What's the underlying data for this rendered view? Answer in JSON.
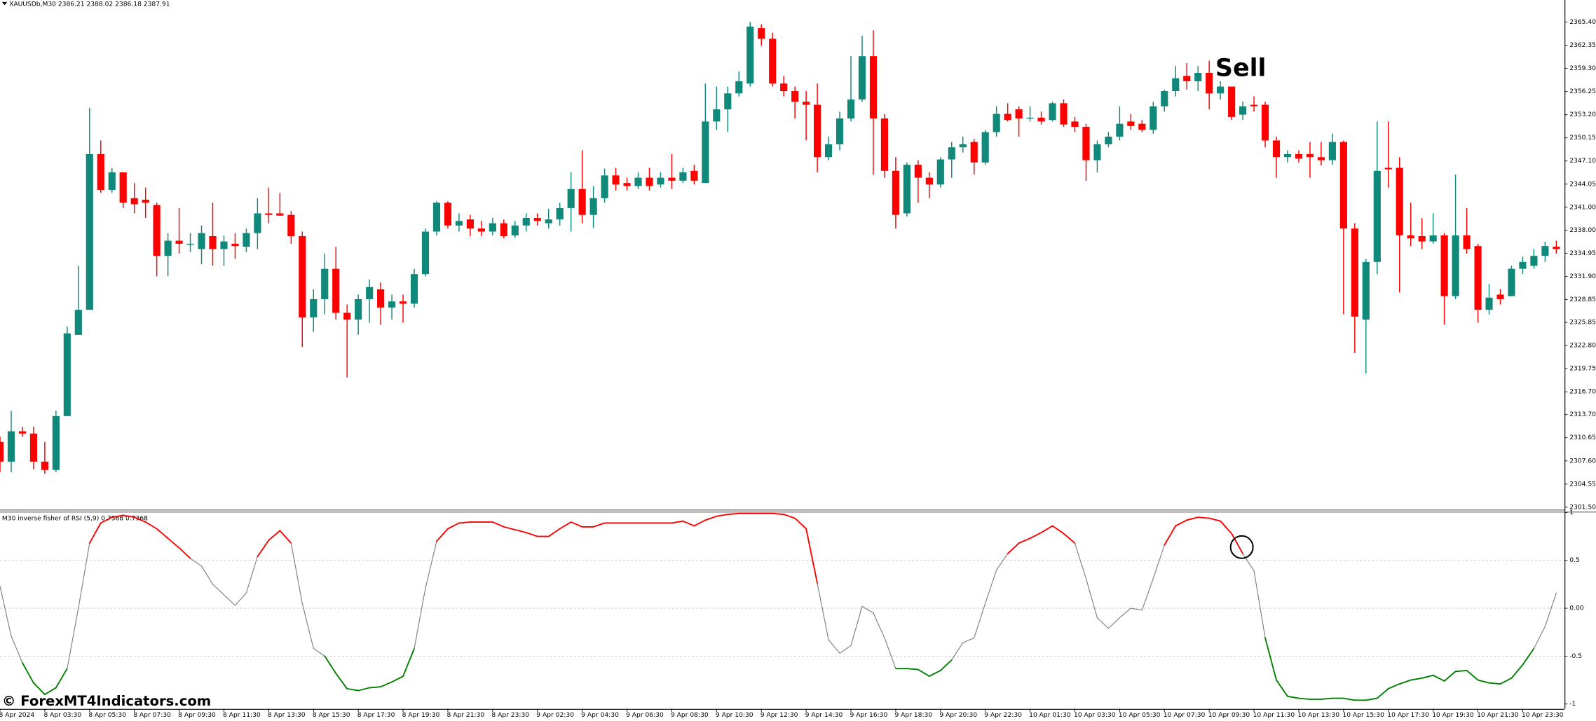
{
  "chart_data": [
    {
      "type": "candlestick",
      "title": "XAUUSDb,M30  2386.21 2388.02 2386.18 2387.91",
      "annotation": "Sell",
      "up_color": "#11897a",
      "down_color": "#ff0000",
      "categories": [
        "8 Apr 2024",
        null,
        null,
        null,
        "8 Apr 03:30",
        null,
        null,
        null,
        "8 Apr 05:30",
        null,
        null,
        null,
        "8 Apr 07:30",
        null,
        null,
        null,
        "8 Apr 09:30",
        null,
        null,
        null,
        "8 Apr 11:30",
        null,
        null,
        null,
        "8 Apr 13:30",
        null,
        null,
        null,
        "8 Apr 15:30",
        null,
        null,
        null,
        "8 Apr 17:30",
        null,
        null,
        null,
        "8 Apr 19:30",
        null,
        null,
        null,
        "8 Apr 21:30",
        null,
        null,
        null,
        "8 Apr 23:30",
        null,
        null,
        null,
        "9 Apr 02:30",
        null,
        null,
        null,
        "9 Apr 04:30",
        null,
        null,
        null,
        "9 Apr 06:30",
        null,
        null,
        null,
        "9 Apr 08:30",
        null,
        null,
        null,
        "9 Apr 10:30",
        null,
        null,
        null,
        "9 Apr 12:30",
        null,
        null,
        null,
        "9 Apr 14:30",
        null,
        null,
        null,
        "9 Apr 16:30",
        null,
        null,
        null,
        "9 Apr 18:30",
        null,
        null,
        null,
        "9 Apr 20:30",
        null,
        null,
        null,
        "9 Apr 22:30",
        null,
        null,
        null,
        "10 Apr 01:30",
        null,
        null,
        null,
        "10 Apr 03:30",
        null,
        null,
        null,
        "10 Apr 05:30",
        null,
        null,
        null,
        "10 Apr 07:30",
        null,
        null,
        null,
        "10 Apr 09:30",
        null,
        null,
        null,
        "10 Apr 11:30",
        null,
        null,
        null,
        "10 Apr 13:30",
        null,
        null,
        null,
        "10 Apr 15:30",
        null,
        null,
        null,
        "10 Apr 17:30",
        null,
        null,
        null,
        "10 Apr 19:30",
        null,
        null,
        null,
        "10 Apr 21:30",
        null,
        null,
        null,
        "10 Apr 23:30",
        null,
        null,
        null
      ],
      "open": [
        2310.1,
        2307.5,
        2311.5,
        2311.2,
        2307.5,
        2306.4,
        2313.5,
        2324.2,
        2327.5,
        2348.0,
        2343.3,
        2345.6,
        2342.2,
        2342.0,
        2341.3,
        2334.6,
        2336.6,
        2336.2,
        2335.5,
        2337.2,
        2335.5,
        2336.2,
        2335.8,
        2337.6,
        2340.2,
        2340.2,
        2340.0,
        2337.2,
        2326.5,
        2328.9,
        2332.9,
        2327.1,
        2326.2,
        2328.9,
        2330.2,
        2327.8,
        2328.6,
        2328.3,
        2332.2,
        2337.8,
        2341.6,
        2338.6,
        2339.4,
        2338.2,
        2337.8,
        2338.9,
        2337.3,
        2338.6,
        2339.6,
        2338.9,
        2339.4,
        2340.9,
        2343.4,
        2340.0,
        2342.2,
        2345.2,
        2344.2,
        2343.8,
        2344.9,
        2344.0,
        2344.9,
        2344.5,
        2345.8,
        2344.2,
        2352.3,
        2353.9,
        2356.0,
        2357.3,
        2364.6,
        2363.2,
        2357.3,
        2356.3,
        2354.9,
        2354.5,
        2347.6,
        2349.3,
        2352.7,
        2355.2,
        2360.9,
        2352.7,
        2345.8,
        2340.2,
        2346.6,
        2344.9,
        2344.0,
        2347.3,
        2348.9,
        2349.6,
        2346.9,
        2350.9,
        2353.3,
        2353.9,
        2352.7,
        2352.8,
        2352.5,
        2354.7,
        2352.3,
        2351.6,
        2347.2,
        2349.3,
        2350.3,
        2352.3,
        2352.0,
        2351.2,
        2354.3,
        2356.3,
        2358.3,
        2357.6,
        2358.7,
        2356.0,
        2356.9,
        2353.2,
        2354.5,
        2354.5,
        2349.8,
        2347.6,
        2348.0,
        2348.0,
        2347.6,
        2347.2,
        2349.6,
        2338.2,
        2326.2,
        2333.8,
        2346.2,
        2346.2,
        2337.3,
        2337.2,
        2336.5,
        2337.3,
        2329.3,
        2337.3,
        2335.9,
        2327.5,
        2329.5,
        2329.3,
        2332.9,
        2333.3,
        2334.6,
        2335.8
      ],
      "high": [
        2310.8,
        2314.2,
        2312.1,
        2312.1,
        2310.1,
        2314.2,
        2325.3,
        2333.3,
        2354.1,
        2349.8,
        2346.2,
        2345.6,
        2344.2,
        2343.6,
        2341.6,
        2337.6,
        2340.9,
        2337.6,
        2338.6,
        2341.6,
        2337.3,
        2337.6,
        2338.2,
        2342.2,
        2343.6,
        2342.9,
        2340.5,
        2337.8,
        2330.2,
        2334.9,
        2335.8,
        2328.2,
        2329.5,
        2331.5,
        2331.1,
        2329.5,
        2329.5,
        2332.9,
        2338.2,
        2341.8,
        2341.8,
        2340.2,
        2340.0,
        2339.2,
        2339.6,
        2339.4,
        2339.2,
        2340.2,
        2340.2,
        2340.8,
        2341.6,
        2345.6,
        2348.5,
        2343.8,
        2346.1,
        2346.2,
        2344.9,
        2345.6,
        2346.2,
        2345.6,
        2348.0,
        2346.2,
        2346.6,
        2357.3,
        2356.9,
        2356.9,
        2358.9,
        2365.4,
        2365.1,
        2364.0,
        2358.3,
        2356.9,
        2356.3,
        2357.3,
        2350.3,
        2353.6,
        2360.9,
        2363.6,
        2364.3,
        2353.3,
        2347.6,
        2346.9,
        2347.2,
        2345.6,
        2347.6,
        2349.6,
        2350.3,
        2350.0,
        2351.2,
        2354.3,
        2354.7,
        2354.3,
        2354.3,
        2353.6,
        2354.9,
        2355.2,
        2352.9,
        2352.0,
        2349.8,
        2350.9,
        2354.3,
        2353.3,
        2352.5,
        2354.9,
        2356.5,
        2359.6,
        2360.0,
        2359.6,
        2360.3,
        2357.6,
        2356.9,
        2354.9,
        2355.6,
        2354.9,
        2350.3,
        2348.5,
        2348.5,
        2349.6,
        2349.6,
        2350.7,
        2349.8,
        2338.9,
        2334.2,
        2352.3,
        2352.3,
        2347.6,
        2341.6,
        2339.6,
        2340.2,
        2337.6,
        2345.3,
        2340.9,
        2336.2,
        2330.9,
        2330.2,
        2333.3,
        2334.5,
        2335.5,
        2336.5,
        2336.6
      ],
      "low": [
        2306.1,
        2306.1,
        2310.8,
        2306.5,
        2305.9,
        2306.1,
        2313.5,
        2324.2,
        2327.5,
        2342.9,
        2342.9,
        2340.9,
        2340.2,
        2339.6,
        2331.9,
        2331.9,
        2334.9,
        2335.1,
        2333.5,
        2333.3,
        2333.3,
        2334.2,
        2335.1,
        2335.5,
        2338.9,
        2339.9,
        2336.2,
        2322.6,
        2324.6,
        2326.9,
        2326.2,
        2318.6,
        2324.2,
        2325.8,
        2325.5,
        2326.2,
        2325.8,
        2327.8,
        2331.9,
        2337.3,
        2338.2,
        2337.8,
        2337.2,
        2337.2,
        2337.3,
        2336.9,
        2337.0,
        2337.8,
        2338.6,
        2338.2,
        2338.6,
        2337.8,
        2338.9,
        2338.3,
        2341.6,
        2343.2,
        2343.2,
        2343.4,
        2343.2,
        2343.6,
        2343.4,
        2344.2,
        2344.0,
        2344.2,
        2351.2,
        2350.9,
        2355.6,
        2356.9,
        2362.3,
        2356.9,
        2355.6,
        2352.7,
        2349.8,
        2345.6,
        2347.2,
        2348.5,
        2352.3,
        2354.9,
        2345.3,
        2344.9,
        2338.2,
        2339.8,
        2341.6,
        2342.2,
        2343.6,
        2344.9,
        2348.2,
        2345.3,
        2346.6,
        2350.3,
        2352.3,
        2350.3,
        2352.3,
        2351.9,
        2352.3,
        2351.6,
        2350.9,
        2344.5,
        2345.6,
        2348.9,
        2349.8,
        2351.2,
        2350.9,
        2350.7,
        2353.6,
        2355.6,
        2356.5,
        2356.3,
        2353.9,
        2355.2,
        2352.5,
        2352.5,
        2353.6,
        2348.9,
        2344.9,
        2346.9,
        2346.9,
        2344.9,
        2346.5,
        2346.6,
        2326.9,
        2321.8,
        2319.1,
        2332.2,
        2343.6,
        2329.8,
        2335.9,
        2335.5,
        2336.2,
        2325.5,
        2328.9,
        2334.9,
        2325.8,
        2326.9,
        2328.2,
        2329.3,
        2332.2,
        2332.9,
        2333.8,
        2334.9
      ],
      "close": [
        2307.5,
        2311.5,
        2311.2,
        2307.5,
        2306.4,
        2313.5,
        2324.4,
        2327.5,
        2348.0,
        2343.3,
        2345.6,
        2341.6,
        2341.4,
        2341.6,
        2334.6,
        2336.6,
        2336.2,
        2336.2,
        2337.6,
        2335.5,
        2336.5,
        2335.9,
        2337.6,
        2340.2,
        2340.0,
        2339.9,
        2337.2,
        2326.5,
        2328.9,
        2332.9,
        2327.1,
        2326.2,
        2328.9,
        2330.5,
        2327.8,
        2328.6,
        2328.3,
        2332.2,
        2337.8,
        2341.6,
        2338.6,
        2339.2,
        2338.2,
        2337.8,
        2338.9,
        2337.2,
        2338.6,
        2339.6,
        2339.2,
        2339.4,
        2340.9,
        2343.4,
        2340.0,
        2342.2,
        2345.2,
        2344.0,
        2343.8,
        2344.9,
        2343.8,
        2344.9,
        2344.5,
        2345.6,
        2344.5,
        2352.3,
        2353.9,
        2356.0,
        2357.6,
        2364.8,
        2363.2,
        2357.3,
        2356.3,
        2354.9,
        2354.5,
        2347.6,
        2349.3,
        2352.7,
        2355.2,
        2360.9,
        2352.7,
        2345.8,
        2340.0,
        2346.6,
        2344.9,
        2344.0,
        2347.3,
        2348.9,
        2349.3,
        2346.9,
        2350.9,
        2353.3,
        2352.5,
        2352.7,
        2352.8,
        2352.3,
        2354.7,
        2351.9,
        2351.6,
        2347.2,
        2349.3,
        2350.3,
        2352.0,
        2351.7,
        2351.2,
        2354.3,
        2356.3,
        2358.0,
        2357.6,
        2358.7,
        2356.0,
        2356.9,
        2352.9,
        2354.3,
        2354.3,
        2349.8,
        2347.6,
        2348.0,
        2347.4,
        2347.6,
        2347.2,
        2349.6,
        2338.2,
        2326.6,
        2333.8,
        2345.8,
        2346.0,
        2337.3,
        2336.9,
        2336.5,
        2337.3,
        2329.3,
        2337.3,
        2335.5,
        2327.5,
        2329.1,
        2328.9,
        2332.9,
        2333.8,
        2334.6,
        2335.9,
        2335.5
      ],
      "ylim": [
        2301.2,
        2368.3
      ],
      "yticks": [
        {
          "value": 2365.4,
          "label": "2365.40"
        },
        2362.35,
        {
          "value": 2359.3,
          "label": "2359.30"
        },
        2356.25,
        {
          "value": 2353.2,
          "label": "2353.20"
        },
        2350.15,
        {
          "value": 2347.1,
          "label": "2347.10"
        },
        2344.05,
        {
          "value": 2341,
          "label": "2341.00"
        },
        {
          "value": 2338,
          "label": "2338.00"
        },
        2334.95,
        {
          "value": 2331.9,
          "label": "2331.90"
        },
        2328.85,
        2325.85,
        {
          "value": 2322.8,
          "label": "2322.80"
        },
        2319.75,
        {
          "value": 2316.7,
          "label": "2316.70"
        },
        {
          "value": 2313.7,
          "label": "2313.70"
        },
        2310.65,
        {
          "value": 2307.6,
          "label": "2307.60"
        },
        2304.55,
        {
          "value": 2301.5,
          "label": "2301.50"
        }
      ]
    },
    {
      "type": "line",
      "title": "M30 inverse fisher of RSI (5,9) 0.7368 0.7368",
      "up_color": "#ff0000",
      "neutral_color": "#808080",
      "down_color": "#008000",
      "values": [
        0.23,
        -0.29,
        -0.57,
        -0.78,
        -0.9,
        -0.83,
        -0.63,
        0,
        0.68,
        0.89,
        0.95,
        0.97,
        0.95,
        0.9,
        0.83,
        0.73,
        0.63,
        0.52,
        0.44,
        0.25,
        0.14,
        0.03,
        0.16,
        0.54,
        0.71,
        0.81,
        0.68,
        0.05,
        -0.42,
        -0.5,
        -0.68,
        -0.84,
        -0.86,
        -0.83,
        -0.82,
        -0.77,
        -0.71,
        -0.42,
        0.21,
        0.7,
        0.83,
        0.89,
        0.9,
        0.9,
        0.9,
        0.85,
        0.82,
        0.79,
        0.75,
        0.75,
        0.83,
        0.9,
        0.85,
        0.85,
        0.89,
        0.89,
        0.89,
        0.89,
        0.89,
        0.89,
        0.89,
        0.91,
        0.86,
        0.92,
        0.96,
        0.98,
        0.99,
        0.99,
        0.99,
        0.99,
        0.98,
        0.94,
        0.83,
        0.26,
        -0.33,
        -0.47,
        -0.39,
        0.02,
        -0.05,
        -0.31,
        -0.63,
        -0.63,
        -0.64,
        -0.71,
        -0.65,
        -0.54,
        -0.36,
        -0.31,
        0.05,
        0.4,
        0.57,
        0.68,
        0.73,
        0.79,
        0.86,
        0.78,
        0.68,
        0.31,
        -0.1,
        -0.21,
        -0.1,
        0,
        -0.02,
        0.31,
        0.66,
        0.86,
        0.92,
        0.95,
        0.94,
        0.91,
        0.78,
        0.57,
        0.39,
        -0.31,
        -0.75,
        -0.92,
        -0.94,
        -0.95,
        -0.95,
        -0.94,
        -0.94,
        -0.96,
        -0.96,
        -0.94,
        -0.84,
        -0.79,
        -0.75,
        -0.73,
        -0.7,
        -0.76,
        -0.66,
        -0.65,
        -0.75,
        -0.78,
        -0.79,
        -0.73,
        -0.59,
        -0.42,
        -0.19,
        0.16
      ],
      "ylim": [
        -1.05,
        1.01
      ],
      "yticks": [
        1,
        0.5,
        {
          "value": 0,
          "label": "0.00"
        },
        -0.5,
        -1
      ],
      "levels": [
        0.5,
        0,
        -0.5
      ]
    }
  ],
  "watermark": "© ForexMT4Indicators.com"
}
